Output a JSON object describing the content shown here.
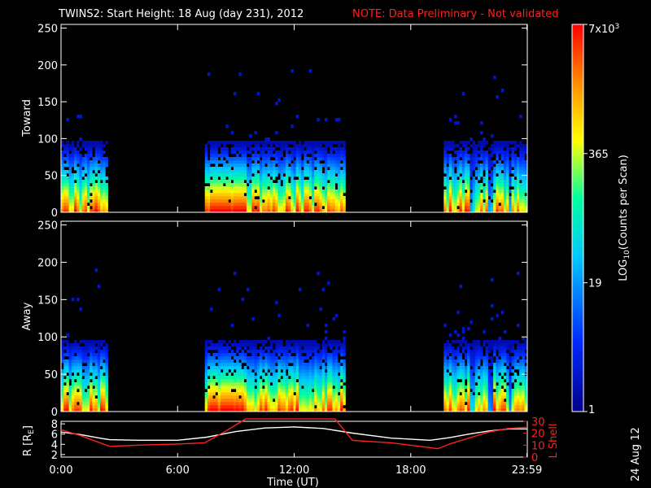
{
  "header": {
    "title": "TWINS2: Start Height: 18 Aug (day 231), 2012",
    "note": "NOTE: Data Preliminary - Not validated"
  },
  "footer": {
    "date_stamp": "24 Aug 12"
  },
  "colors": {
    "note": "#ff2020",
    "r_line": "#ffffff",
    "lshell_line": "#ff2020",
    "background": "#000000"
  },
  "chart_data": [
    {
      "type": "heatmap",
      "ylabel": "Toward",
      "xlim": [
        0,
        24
      ],
      "ylim": [
        0,
        255
      ],
      "yticks": [
        0,
        50,
        100,
        150,
        200,
        250
      ],
      "active_intervals_hours": [
        [
          0,
          2.4
        ],
        [
          7.4,
          14.6
        ],
        [
          19.7,
          24
        ]
      ],
      "x_units": "hours UT"
    },
    {
      "type": "heatmap",
      "ylabel": "Away",
      "xlim": [
        0,
        24
      ],
      "ylim": [
        0,
        255
      ],
      "yticks": [
        0,
        50,
        100,
        150,
        200,
        250
      ],
      "active_intervals_hours": [
        [
          0,
          2.4
        ],
        [
          7.4,
          14.6
        ],
        [
          19.7,
          24
        ]
      ],
      "x_units": "hours UT"
    },
    {
      "type": "line",
      "xlabel": "Time (UT)",
      "xtick_labels": [
        "0:00",
        "6:00",
        "12:00",
        "18:00",
        "23:59"
      ],
      "xticks_hours": [
        0,
        6,
        12,
        18,
        23.98
      ],
      "y_left": {
        "label": "R [R",
        "label_sub": "E",
        "label_end": "]",
        "ticks": [
          2,
          4,
          6,
          8
        ],
        "lim": [
          1.5,
          8.5
        ]
      },
      "y_right": {
        "label": "L Shell",
        "ticks": [
          0,
          10,
          20,
          30
        ],
        "lim": [
          0,
          30
        ]
      },
      "series": [
        {
          "axis": "left",
          "x": [
            0,
            1,
            2,
            2.5,
            4,
            6,
            7.5,
            9,
            10.5,
            12,
            13.5,
            15,
            17,
            19,
            20,
            21,
            22,
            23,
            24
          ],
          "y": [
            6.4,
            5.9,
            5.2,
            4.9,
            4.8,
            4.8,
            5.4,
            6.5,
            7.2,
            7.4,
            7.1,
            6.2,
            5.2,
            4.8,
            5.3,
            6.0,
            6.6,
            7.0,
            7.0
          ]
        },
        {
          "axis": "right",
          "x": [
            0,
            1,
            2.5,
            4,
            6,
            7.4,
            8.5,
            9.5,
            14.1,
            15,
            17,
            19.4,
            20,
            21,
            22,
            23,
            24
          ],
          "y": [
            23,
            18,
            9,
            10,
            11,
            12,
            22,
            32,
            32,
            14,
            12,
            7,
            11,
            16,
            21,
            24,
            25
          ]
        }
      ]
    }
  ],
  "colorbar": {
    "label": "LOG",
    "label_sub": "10",
    "label_rest": "(Counts per Scan)",
    "ticks": [
      {
        "label": "1",
        "value": 1
      },
      {
        "label": "19",
        "value": 19
      },
      {
        "label": "365",
        "value": 365
      },
      {
        "label": "7x10",
        "sup": "3",
        "value": 7000
      }
    ],
    "range": [
      1,
      7000
    ],
    "scale": "log"
  }
}
